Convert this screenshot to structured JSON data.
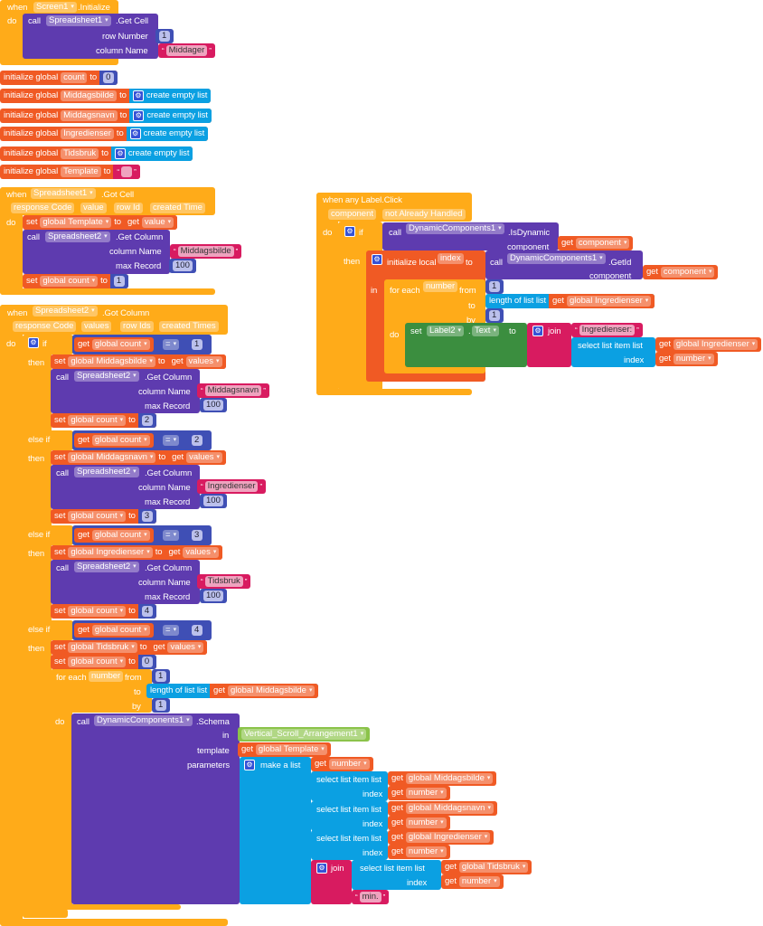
{
  "colors": {
    "control": "#FFAB19",
    "variables": "#F05A24",
    "component_methods": "#5E3BAF",
    "math": "#3F4FB5",
    "text": "#D81B60",
    "lists": "#0BA0E2",
    "component_setter": "#3B8E3F",
    "component_block": "#8BC34A"
  },
  "kw": {
    "when": "when",
    "do": "do",
    "call": "call",
    "set": "set",
    "get": "get",
    "to": "to",
    "then": "then",
    "if": "if",
    "else_if": "else if",
    "in": "in",
    "for_each": "for each",
    "from": "from",
    "by": "by",
    "init_global": "initialize global",
    "init_local": "initialize local",
    "create_empty_list": "create empty list",
    "column_name": "column Name",
    "max_record": "max Record",
    "row_number": "row Number",
    "component": "component",
    "length_of_list": "length of list  list",
    "select_list_item": "select list item  list",
    "index": "index",
    "join": "join",
    "make_a_list": "make a list",
    "template": "template",
    "parameters": "parameters",
    "dot": ".",
    "eq": "="
  },
  "screen_init": {
    "component": "Screen1",
    "event": ".Initialize",
    "target": "Spreadsheet1",
    "method": ".Get Cell",
    "row": "1",
    "column": "Middager"
  },
  "globals": [
    {
      "name": "count",
      "value": "0"
    },
    {
      "name": "Middagsbilde"
    },
    {
      "name": "Middagsnavn"
    },
    {
      "name": "Ingredienser"
    },
    {
      "name": "Tidsbruk"
    },
    {
      "name": "Template",
      "value": ""
    }
  ],
  "got_cell": {
    "component": "Spreadsheet1",
    "event": ".Got Cell",
    "params": [
      "response Code",
      "value",
      "row Id",
      "created Time"
    ],
    "set_var": "global Template",
    "get_var": "value",
    "target": "Spreadsheet2",
    "method": ".Get Column",
    "column": "Middagsbilde",
    "max": "100",
    "count_var": "global count",
    "count_value": "1"
  },
  "label_click": {
    "event": "when any Label.Click",
    "params": [
      "component",
      "not Already Handled"
    ],
    "target": "DynamicComponents1",
    "is_dynamic": ".IsDynamic",
    "get_component": "component",
    "local_var": "index",
    "get_id": ".GetId",
    "loop_var": "number",
    "from": "1",
    "list_var": "global Ingredienser",
    "by": "1",
    "set_component": "Label2",
    "set_prop": "Text",
    "string": "Ingredienser:",
    "index_var": "number"
  },
  "got_column": {
    "component": "Spreadsheet2",
    "event": ".Got Column",
    "params": [
      "response Code",
      "values",
      "row Ids",
      "created Times"
    ],
    "count_var": "global count",
    "get_values": "values",
    "target": "Spreadsheet2",
    "method": ".Get Column",
    "branches": [
      {
        "cond": "1",
        "set_var": "global Middagsbilde",
        "column": "Middagsnavn",
        "max": "100",
        "next": "2"
      },
      {
        "cond": "2",
        "set_var": "global Middagsnavn",
        "column": "Ingredienser",
        "max": "100",
        "next": "3"
      },
      {
        "cond": "3",
        "set_var": "global Ingredienser",
        "column": "Tidsbruk",
        "max": "100",
        "next": "4"
      },
      {
        "cond": "4",
        "set_var": "global Tidsbruk",
        "next": "0"
      }
    ],
    "loop": {
      "var": "number",
      "from": "1",
      "list_var": "global Middagsbilde",
      "by": "1"
    },
    "schema": {
      "target": "DynamicComponents1",
      "method": ".Schema",
      "in_component": "Vertical_Scroll_Arrangement1",
      "template_var": "global Template",
      "first_param": "number",
      "lists": [
        "global Middagsbilde",
        "global Middagsnavn",
        "global Ingredienser",
        "global Tidsbruk"
      ],
      "index_var": "number",
      "suffix": "min."
    }
  }
}
